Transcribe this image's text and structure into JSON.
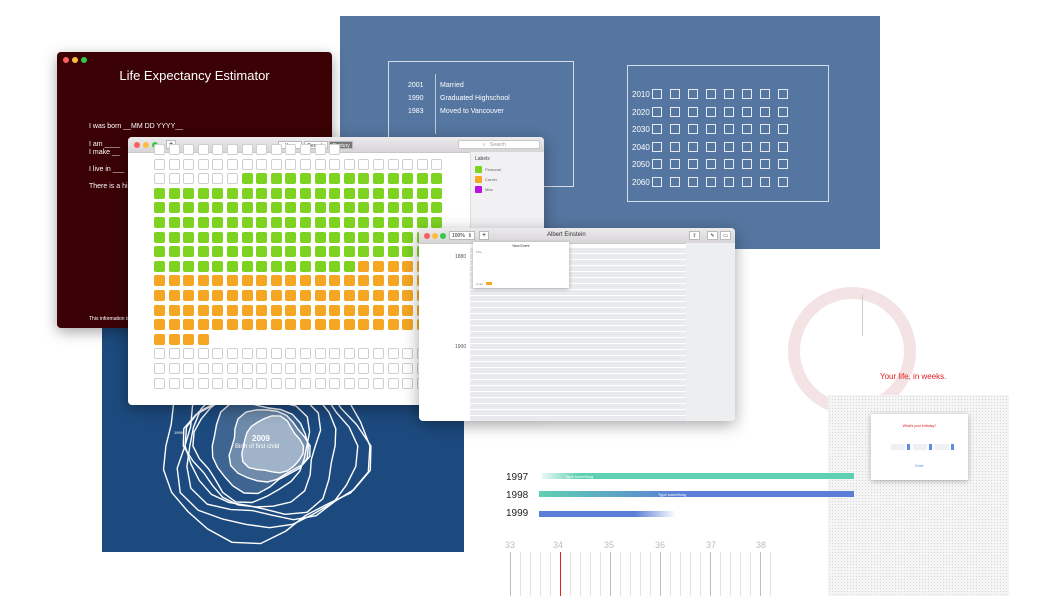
{
  "timeline_panel": {
    "events": [
      {
        "year": "2001",
        "label": "Married"
      },
      {
        "year": "1990",
        "label": "Graduated Highschool"
      },
      {
        "year": "1983",
        "label": "Moved to Vancouver"
      }
    ],
    "decades": [
      "2010",
      "2020",
      "2030",
      "2040",
      "2050",
      "2060"
    ]
  },
  "life_window": {
    "title": "Life Expectancy Estimator",
    "lines": [
      "I was born __MM DD YYYY__",
      "I am ____",
      "I make __",
      "I live in ___",
      "There is a hi",
      "This information is"
    ]
  },
  "grid_window": {
    "add_label": "+",
    "segments": [
      "Year",
      "Decade",
      "Century"
    ],
    "active_segment": "Century",
    "search_placeholder": "Search",
    "labels_title": "Labels",
    "labels": [
      {
        "name": "Personal",
        "color": "#7ed321"
      },
      {
        "name": "Career",
        "color": "#f5a623"
      },
      {
        "name": "Misc",
        "color": "#bd10e0"
      }
    ]
  },
  "einstein_window": {
    "title": "Albert Einstein",
    "zoom": "100%",
    "add_label": "+",
    "years": [
      "1880",
      "1900"
    ],
    "popup_title": "New Event",
    "popup_field": "Title",
    "popup_color_label": "Color"
  },
  "navy_panel": {
    "year_small": "1999",
    "year_big": "2009",
    "caption": "Birth of first child"
  },
  "weeks": {
    "tagline": "Your life, in weeks.",
    "question": "What's your birthday?",
    "button": "Enter"
  },
  "bars": [
    {
      "year": "1997",
      "label": "Type something"
    },
    {
      "year": "1998",
      "label": "Type something"
    },
    {
      "year": "1999",
      "label": ""
    }
  ],
  "ruler": [
    "33",
    "34",
    "35",
    "36",
    "37",
    "38"
  ],
  "colors": {
    "blue_panel": "#5576a0",
    "life_bg": "#3a0204",
    "navy": "#1d4a7e",
    "green": "#7ed321",
    "orange": "#f5a623",
    "teal": "#5fd0b2",
    "bar_blue": "#5b7fd6",
    "red": "#e02020"
  }
}
